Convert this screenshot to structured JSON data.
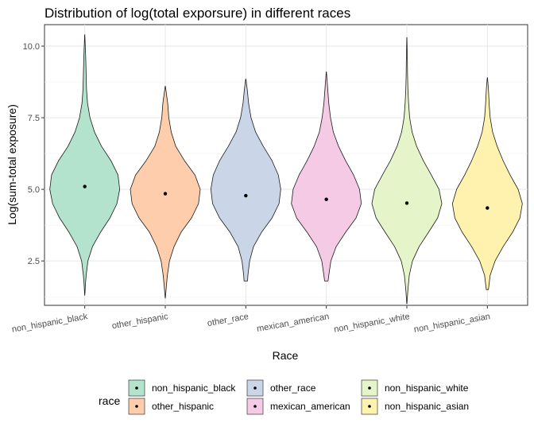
{
  "chart_data": {
    "type": "violin",
    "title": "Distribution of log(total exporsure) in different races",
    "xlabel": "Race",
    "ylabel": "Log(sum-total exposure)",
    "ylim": [
      0.95,
      10.75
    ],
    "yticks": [
      2.5,
      5.0,
      7.5,
      10.0
    ],
    "ytick_labels": [
      "2.5",
      "5.0",
      "7.5",
      "10.0"
    ],
    "grid": true,
    "legend": {
      "title": "race",
      "placement": "bottom",
      "entries": [
        "non_hispanic_black",
        "other_hispanic",
        "other_race",
        "mexican_american",
        "non_hispanic_white",
        "non_hispanic_asian"
      ]
    },
    "categories": [
      "non_hispanic_black",
      "other_hispanic",
      "other_race",
      "mexican_american",
      "non_hispanic_white",
      "non_hispanic_asian"
    ],
    "series": [
      {
        "name": "non_hispanic_black",
        "color": "#b3e2cd",
        "min": 1.3,
        "max": 10.4,
        "median_point": 5.1,
        "profile": [
          [
            1.3,
            0.002
          ],
          [
            1.7,
            0.02
          ],
          [
            2.0,
            0.04
          ],
          [
            2.5,
            0.09
          ],
          [
            3.0,
            0.22
          ],
          [
            3.5,
            0.45
          ],
          [
            4.0,
            0.72
          ],
          [
            4.5,
            0.92
          ],
          [
            5.0,
            1.0
          ],
          [
            5.5,
            0.95
          ],
          [
            6.0,
            0.75
          ],
          [
            6.5,
            0.48
          ],
          [
            7.0,
            0.28
          ],
          [
            7.5,
            0.15
          ],
          [
            8.0,
            0.08
          ],
          [
            8.5,
            0.05
          ],
          [
            9.0,
            0.04
          ],
          [
            9.5,
            0.03
          ],
          [
            10.0,
            0.015
          ],
          [
            10.4,
            0.002
          ]
        ]
      },
      {
        "name": "other_hispanic",
        "color": "#fdcdac",
        "min": 1.2,
        "max": 8.6,
        "median_point": 4.85,
        "profile": [
          [
            1.2,
            0.002
          ],
          [
            1.6,
            0.03
          ],
          [
            2.0,
            0.06
          ],
          [
            2.5,
            0.12
          ],
          [
            3.0,
            0.25
          ],
          [
            3.5,
            0.45
          ],
          [
            4.0,
            0.75
          ],
          [
            4.5,
            0.95
          ],
          [
            5.0,
            1.0
          ],
          [
            5.5,
            0.85
          ],
          [
            6.0,
            0.55
          ],
          [
            6.5,
            0.3
          ],
          [
            7.0,
            0.17
          ],
          [
            7.5,
            0.1
          ],
          [
            8.0,
            0.07
          ],
          [
            8.6,
            0.003
          ]
        ]
      },
      {
        "name": "other_race",
        "color": "#cbd5e8",
        "min": 1.8,
        "max": 8.85,
        "median_point": 4.78,
        "profile": [
          [
            1.8,
            0.05
          ],
          [
            2.0,
            0.06
          ],
          [
            2.5,
            0.11
          ],
          [
            3.0,
            0.22
          ],
          [
            3.5,
            0.45
          ],
          [
            4.0,
            0.75
          ],
          [
            4.5,
            0.95
          ],
          [
            5.0,
            1.0
          ],
          [
            5.5,
            0.93
          ],
          [
            6.0,
            0.75
          ],
          [
            6.5,
            0.5
          ],
          [
            7.0,
            0.28
          ],
          [
            7.5,
            0.15
          ],
          [
            8.0,
            0.08
          ],
          [
            8.5,
            0.04
          ],
          [
            8.85,
            0.003
          ]
        ]
      },
      {
        "name": "mexican_american",
        "color": "#f4cae4",
        "min": 1.8,
        "max": 9.1,
        "median_point": 4.65,
        "profile": [
          [
            1.8,
            0.05
          ],
          [
            2.0,
            0.07
          ],
          [
            2.5,
            0.13
          ],
          [
            3.0,
            0.28
          ],
          [
            3.5,
            0.55
          ],
          [
            4.0,
            0.85
          ],
          [
            4.5,
            1.0
          ],
          [
            5.0,
            0.95
          ],
          [
            5.5,
            0.78
          ],
          [
            6.0,
            0.55
          ],
          [
            6.5,
            0.35
          ],
          [
            7.0,
            0.2
          ],
          [
            7.5,
            0.12
          ],
          [
            8.0,
            0.07
          ],
          [
            8.5,
            0.04
          ],
          [
            9.1,
            0.003
          ]
        ]
      },
      {
        "name": "non_hispanic_white",
        "color": "#e6f5c9",
        "min": 1.0,
        "max": 10.3,
        "median_point": 4.52,
        "profile": [
          [
            1.0,
            0.002
          ],
          [
            1.5,
            0.03
          ],
          [
            2.0,
            0.07
          ],
          [
            2.5,
            0.16
          ],
          [
            3.0,
            0.35
          ],
          [
            3.5,
            0.62
          ],
          [
            4.0,
            0.88
          ],
          [
            4.5,
            1.0
          ],
          [
            5.0,
            0.92
          ],
          [
            5.5,
            0.7
          ],
          [
            6.0,
            0.47
          ],
          [
            6.5,
            0.28
          ],
          [
            7.0,
            0.15
          ],
          [
            7.5,
            0.08
          ],
          [
            8.0,
            0.05
          ],
          [
            8.5,
            0.03
          ],
          [
            9.0,
            0.02
          ],
          [
            9.5,
            0.015
          ],
          [
            10.3,
            0.002
          ]
        ]
      },
      {
        "name": "non_hispanic_asian",
        "color": "#fff2ae",
        "min": 1.5,
        "max": 8.9,
        "median_point": 4.35,
        "profile": [
          [
            1.5,
            0.03
          ],
          [
            2.0,
            0.08
          ],
          [
            2.5,
            0.22
          ],
          [
            3.0,
            0.45
          ],
          [
            3.5,
            0.72
          ],
          [
            4.0,
            0.93
          ],
          [
            4.5,
            1.0
          ],
          [
            5.0,
            0.88
          ],
          [
            5.5,
            0.65
          ],
          [
            6.0,
            0.45
          ],
          [
            6.5,
            0.28
          ],
          [
            7.0,
            0.15
          ],
          [
            7.5,
            0.08
          ],
          [
            8.0,
            0.05
          ],
          [
            8.5,
            0.03
          ],
          [
            8.9,
            0.003
          ]
        ]
      }
    ]
  }
}
